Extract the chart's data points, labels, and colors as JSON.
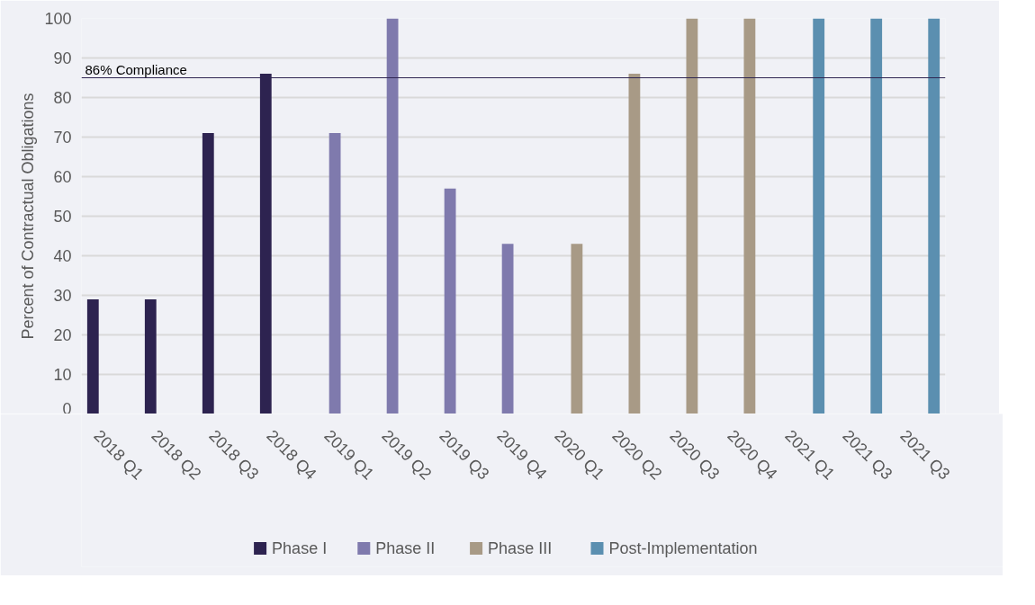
{
  "chart_data": {
    "type": "bar",
    "ylabel": "Percent of Contractual Obligations",
    "categories": [
      "2018 Q1",
      "2018 Q2",
      "2018 Q3",
      "2018 Q4",
      "2019 Q1",
      "2019 Q2",
      "2019 Q3",
      "2019 Q4",
      "2020 Q1",
      "2020 Q2",
      "2020 Q3",
      "2020 Q4",
      "2021 Q1",
      "2021  Q3",
      "2021 Q3"
    ],
    "series": [
      {
        "name": "Phase I",
        "color": "#2d2350",
        "values": [
          29,
          29,
          71,
          86,
          null,
          null,
          null,
          null,
          null,
          null,
          null,
          null,
          null,
          null,
          null
        ]
      },
      {
        "name": "Phase II",
        "color": "#7f7aad",
        "values": [
          null,
          null,
          null,
          null,
          71,
          100,
          57,
          43,
          null,
          null,
          null,
          null,
          null,
          null,
          null
        ]
      },
      {
        "name": "Phase III",
        "color": "#a89a86",
        "values": [
          null,
          null,
          null,
          null,
          null,
          null,
          null,
          null,
          43,
          86,
          100,
          100,
          null,
          null,
          null
        ]
      },
      {
        "name": "Post-Implementation",
        "color": "#5b8fb0",
        "values": [
          null,
          null,
          null,
          null,
          null,
          null,
          null,
          null,
          null,
          null,
          null,
          null,
          100,
          100,
          100
        ]
      }
    ],
    "ylim": [
      0,
      100
    ],
    "yticks": [
      0,
      10,
      20,
      30,
      40,
      50,
      60,
      70,
      80,
      90,
      100
    ],
    "ref_lines": [
      {
        "axis": "y",
        "value": 85,
        "label": "86% Compliance",
        "color": "#2d2350"
      }
    ],
    "grid": "y",
    "legend": "bottom"
  }
}
